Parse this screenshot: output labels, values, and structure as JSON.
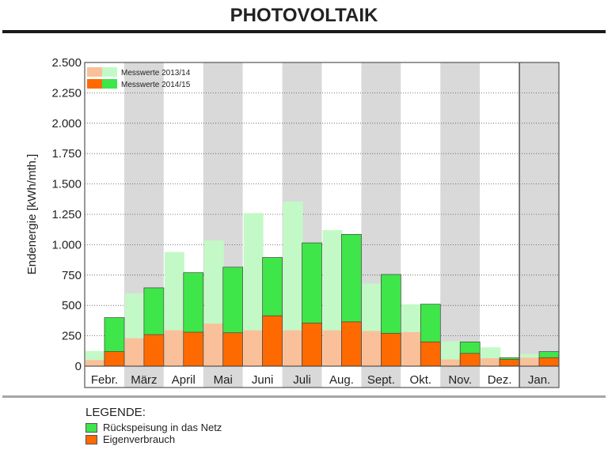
{
  "header": {
    "title": "PHOTOVOLTAIK"
  },
  "legend": {
    "title": "LEGENDE:",
    "items": [
      {
        "label": "Rückspeisung in das Netz",
        "color": "#3ee64a"
      },
      {
        "label": "Eigenverbrauch",
        "color": "#ff6a00"
      }
    ]
  },
  "chart_data": {
    "type": "bar",
    "ylabel": "Endenergie [kWh/mth.]",
    "xlabel": "",
    "ylim": [
      0,
      2500
    ],
    "yticks": [
      0,
      250,
      500,
      750,
      1000,
      1250,
      1500,
      1750,
      2000,
      2250,
      2500
    ],
    "ytick_labels": [
      "0",
      "250",
      "500",
      "750",
      "1.000",
      "1.250",
      "1.500",
      "1.750",
      "2.000",
      "2.250",
      "2.500"
    ],
    "grid": true,
    "legend_position": "top-left",
    "stacked": true,
    "categories": [
      "Febr.",
      "März",
      "April",
      "Mai",
      "Juni",
      "Juli",
      "Aug.",
      "Sept.",
      "Okt.",
      "Nov.",
      "Dez.",
      "Jan."
    ],
    "series": [
      {
        "name": "Messwerte 2013/14",
        "colors": {
          "Eigenverbrauch": "#f9c09a",
          "Rückspeisung in das Netz": "#c3f9c6"
        },
        "eigenverbrauch": [
          50,
          230,
          295,
          350,
          295,
          295,
          295,
          290,
          280,
          55,
          65,
          70
        ],
        "total": [
          125,
          600,
          940,
          1035,
          1260,
          1355,
          1120,
          680,
          510,
          205,
          155,
          100
        ]
      },
      {
        "name": "Messwerte 2014/15",
        "colors": {
          "Eigenverbrauch": "#ff6a00",
          "Rückspeisung in das Netz": "#3ee64a"
        },
        "eigenverbrauch": [
          120,
          260,
          280,
          275,
          415,
          355,
          365,
          270,
          200,
          105,
          55,
          70
        ],
        "total": [
          400,
          645,
          770,
          815,
          895,
          1015,
          1085,
          755,
          510,
          200,
          70,
          120
        ]
      }
    ]
  }
}
